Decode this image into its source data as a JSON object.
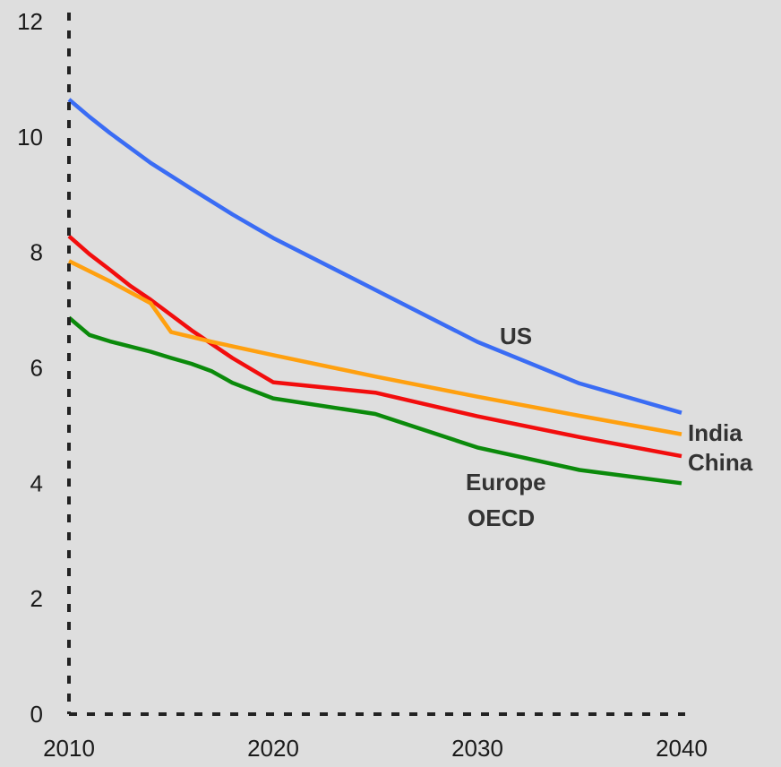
{
  "chart_data": {
    "type": "line",
    "xlim": [
      2010,
      2040
    ],
    "ylim": [
      0,
      12
    ],
    "x_ticks": [
      {
        "value": 2010,
        "label": "2010"
      },
      {
        "value": 2020,
        "label": "2020"
      },
      {
        "value": 2030,
        "label": "2030"
      },
      {
        "value": 2040,
        "label": "2040"
      }
    ],
    "y_ticks": [
      {
        "value": 0,
        "label": "0"
      },
      {
        "value": 2,
        "label": "2"
      },
      {
        "value": 4,
        "label": "4"
      },
      {
        "value": 6,
        "label": "6"
      },
      {
        "value": 8,
        "label": "8"
      },
      {
        "value": 10,
        "label": "10"
      },
      {
        "value": 12,
        "label": "12"
      }
    ],
    "grid": false,
    "series": [
      {
        "name": "US",
        "color": "#3a6cf4",
        "x": [
          2010,
          2011,
          2012,
          2014,
          2016,
          2018,
          2020,
          2025,
          2030,
          2035,
          2040
        ],
        "y": [
          10.65,
          10.35,
          10.07,
          9.55,
          9.1,
          8.66,
          8.25,
          7.35,
          6.45,
          5.73,
          5.22
        ]
      },
      {
        "name": "India",
        "color": "#ffa00f",
        "x": [
          2010,
          2012,
          2014,
          2015,
          2017,
          2020,
          2025,
          2030,
          2035,
          2040
        ],
        "y": [
          7.85,
          7.5,
          7.12,
          6.62,
          6.45,
          6.22,
          5.85,
          5.5,
          5.17,
          4.85
        ]
      },
      {
        "name": "China",
        "color": "#f20d0d",
        "x": [
          2010,
          2011,
          2012,
          2013,
          2014,
          2016,
          2018,
          2020,
          2025,
          2030,
          2035,
          2040
        ],
        "y": [
          8.28,
          7.97,
          7.7,
          7.42,
          7.18,
          6.65,
          6.17,
          5.75,
          5.57,
          5.16,
          4.8,
          4.47
        ]
      },
      {
        "name": "Europe OECD",
        "color": "#0b8a0b",
        "x": [
          2010,
          2011,
          2012,
          2014,
          2015,
          2016,
          2017,
          2018,
          2020,
          2025,
          2030,
          2035,
          2040
        ],
        "y": [
          6.87,
          6.57,
          6.46,
          6.28,
          6.17,
          6.07,
          5.94,
          5.74,
          5.47,
          5.2,
          4.62,
          4.23,
          4.0
        ]
      }
    ],
    "annotations": [
      {
        "text": "US",
        "series": "US"
      },
      {
        "text": "India",
        "series": "India"
      },
      {
        "text": "China",
        "series": "China"
      },
      {
        "text": "Europe",
        "series": "Europe OECD"
      },
      {
        "text": "OECD",
        "series": "Europe OECD"
      }
    ]
  }
}
